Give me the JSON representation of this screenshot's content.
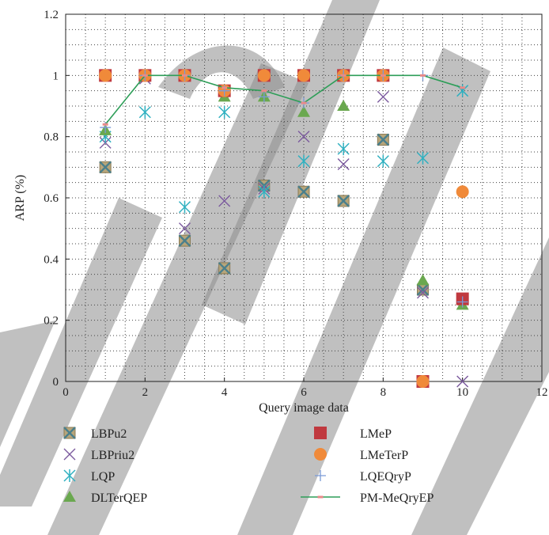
{
  "chart_data": {
    "type": "scatter",
    "xlabel": "Query image data",
    "ylabel": "ARP (%)",
    "xlim": [
      0,
      12
    ],
    "ylim": [
      0,
      1.2
    ],
    "xticks": [
      0,
      2,
      4,
      6,
      8,
      10,
      12
    ],
    "yticks": [
      0,
      0.2,
      0.4,
      0.6,
      0.8,
      1,
      1.2
    ],
    "xtick_labels": [
      "0",
      "2",
      "4",
      "6",
      "8",
      "10",
      "12"
    ],
    "ytick_labels": [
      "0",
      "0.2",
      "0.4",
      "0.6",
      "0.8",
      "1",
      "1.2"
    ],
    "grid": true,
    "legend_position": "bottom",
    "series": [
      {
        "name": "LBPu2",
        "marker": "boxed-x",
        "color": "#4a7f8c",
        "points": [
          [
            1,
            0.7
          ],
          [
            2,
            1.0
          ],
          [
            3,
            0.46
          ],
          [
            4,
            0.37
          ],
          [
            5,
            0.64
          ],
          [
            6,
            0.62
          ],
          [
            7,
            0.59
          ],
          [
            8,
            0.79
          ],
          [
            9,
            0.3
          ]
        ]
      },
      {
        "name": "LBPriu2",
        "marker": "x",
        "color": "#7b5a9e",
        "points": [
          [
            1,
            0.78
          ],
          [
            2,
            0.99
          ],
          [
            3,
            0.5
          ],
          [
            4,
            0.59
          ],
          [
            5,
            0.63
          ],
          [
            6,
            0.8
          ],
          [
            7,
            0.71
          ],
          [
            8,
            0.93
          ],
          [
            9,
            0.29
          ],
          [
            10,
            0.0
          ]
        ]
      },
      {
        "name": "LQP",
        "marker": "asterisk",
        "color": "#2fb0c0",
        "points": [
          [
            1,
            0.8
          ],
          [
            2,
            0.88
          ],
          [
            3,
            0.57
          ],
          [
            4,
            0.88
          ],
          [
            5,
            0.62
          ],
          [
            6,
            0.72
          ],
          [
            7,
            0.76
          ],
          [
            8,
            0.72
          ],
          [
            9,
            0.73
          ],
          [
            10,
            0.95
          ]
        ]
      },
      {
        "name": "DLTerQEP",
        "marker": "triangle",
        "color": "#6aa84f",
        "points": [
          [
            1,
            0.82
          ],
          [
            4,
            0.93
          ],
          [
            5,
            0.93
          ],
          [
            6,
            0.88
          ],
          [
            7,
            0.9
          ],
          [
            9,
            0.33
          ],
          [
            10,
            0.25
          ]
        ]
      },
      {
        "name": "LMeP",
        "marker": "square",
        "color": "#c0393f",
        "points": [
          [
            1,
            1.0
          ],
          [
            2,
            1.0
          ],
          [
            3,
            1.0
          ],
          [
            4,
            0.95
          ],
          [
            5,
            1.0
          ],
          [
            6,
            1.0
          ],
          [
            7,
            1.0
          ],
          [
            8,
            1.0
          ],
          [
            9,
            0.0
          ],
          [
            10,
            0.27
          ]
        ]
      },
      {
        "name": "LMeTerP",
        "marker": "circle",
        "color": "#f08a3a",
        "points": [
          [
            1,
            1.0
          ],
          [
            2,
            1.0
          ],
          [
            3,
            1.0
          ],
          [
            4,
            0.95
          ],
          [
            5,
            1.0
          ],
          [
            6,
            1.0
          ],
          [
            7,
            1.0
          ],
          [
            8,
            1.0
          ],
          [
            9,
            0.0
          ],
          [
            10,
            0.62
          ]
        ]
      },
      {
        "name": "LQEQryP",
        "marker": "plus",
        "color": "#7a9ad6",
        "points": [
          [
            1,
            0.83
          ],
          [
            2,
            1.0
          ],
          [
            3,
            1.0
          ],
          [
            4,
            0.95
          ],
          [
            5,
            0.93
          ],
          [
            6,
            0.91
          ],
          [
            7,
            1.0
          ],
          [
            8,
            1.0
          ],
          [
            9,
            1.0
          ],
          [
            10,
            0.26
          ]
        ]
      },
      {
        "name": "PM-MeQryEP",
        "marker": "line",
        "color": "#2e9e58",
        "marker_color": "#e88a8a",
        "points": [
          [
            1,
            0.84
          ],
          [
            2,
            1.0
          ],
          [
            3,
            1.0
          ],
          [
            4,
            0.96
          ],
          [
            5,
            0.95
          ],
          [
            6,
            0.91
          ],
          [
            7,
            1.0
          ],
          [
            8,
            1.0
          ],
          [
            9,
            1.0
          ],
          [
            10,
            0.96
          ]
        ]
      }
    ]
  },
  "colors": {
    "watermark": "#8c8c8c",
    "grid": "#444444",
    "axis": "#222222"
  }
}
